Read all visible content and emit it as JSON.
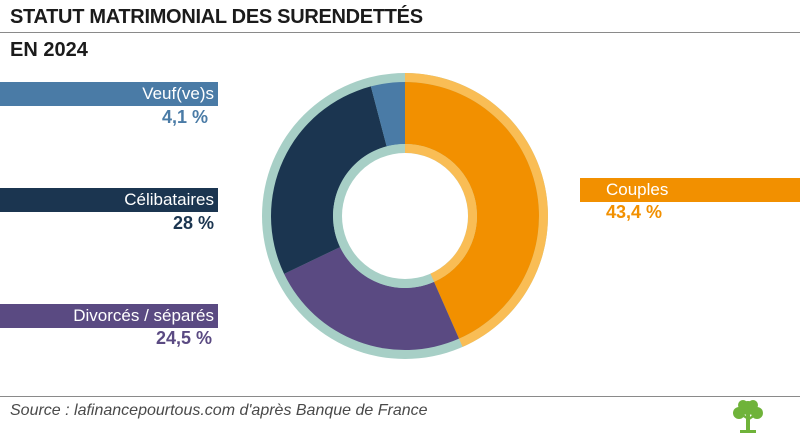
{
  "header": {
    "title": "STATUT MATRIMONIAL DES SURENDETTÉS",
    "subtitle": "EN 2024"
  },
  "footer": {
    "source": "Source : lafinancepourtous.com d'après Banque de France"
  },
  "colors": {
    "couples": "#f29000",
    "couples_ring": "#f9bd55",
    "divorces": "#5a4a82",
    "celibataires": "#1b3550",
    "veufs": "#4a7ba6",
    "ring": "#a7cfc6",
    "logo": "#6fb33a"
  },
  "chart_data": {
    "type": "pie",
    "donut": true,
    "title": "STATUT MATRIMONIAL DES SURENDETTÉS",
    "subtitle": "EN 2024",
    "unit": "%",
    "slices": [
      {
        "key": "couples",
        "label": "Couples",
        "value": 43.4,
        "display": "43,4  %"
      },
      {
        "key": "divorces",
        "label": "Divorcés / séparés",
        "value": 24.5,
        "display": "24,5 %"
      },
      {
        "key": "celibataires",
        "label": "Célibataires",
        "value": 28,
        "display": "28 %"
      },
      {
        "key": "veufs",
        "label": "Veuf(ve)s",
        "value": 4.1,
        "display": "4,1 %"
      }
    ]
  }
}
